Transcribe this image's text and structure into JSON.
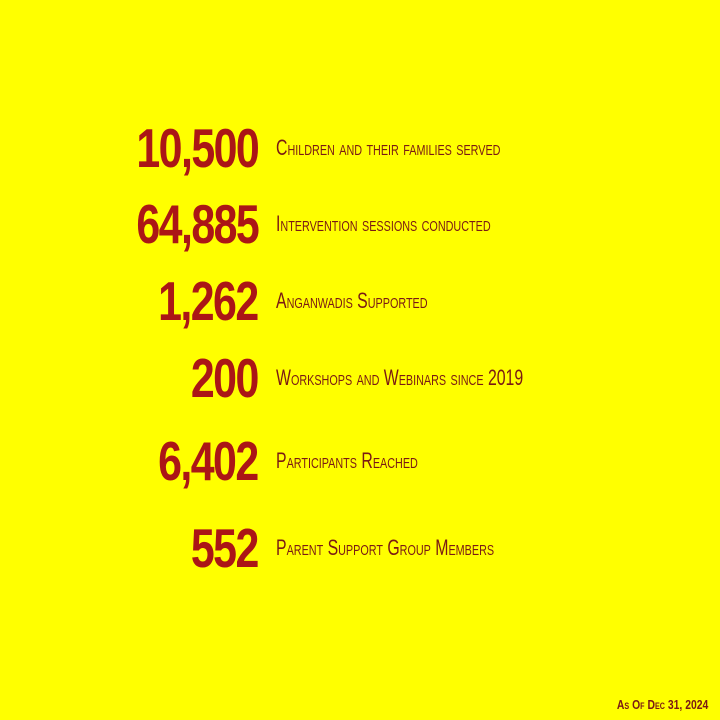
{
  "stats": [
    {
      "number": "10,500",
      "label": "Children and their families served"
    },
    {
      "number": "64,885",
      "label": "Intervention sessions conducted"
    },
    {
      "number": "1,262",
      "label": "Anganwadis Supported"
    },
    {
      "number": "200",
      "label": "Workshops and Webinars since 2019"
    },
    {
      "number": "6,402",
      "label": "Participants Reached"
    },
    {
      "number": "552",
      "label": "Parent Support Group Members"
    }
  ],
  "footnote": "As Of Dec 31, 2024",
  "colors": {
    "background": "#ffff00",
    "number": "#ab1616",
    "label": "#7a1a14"
  }
}
